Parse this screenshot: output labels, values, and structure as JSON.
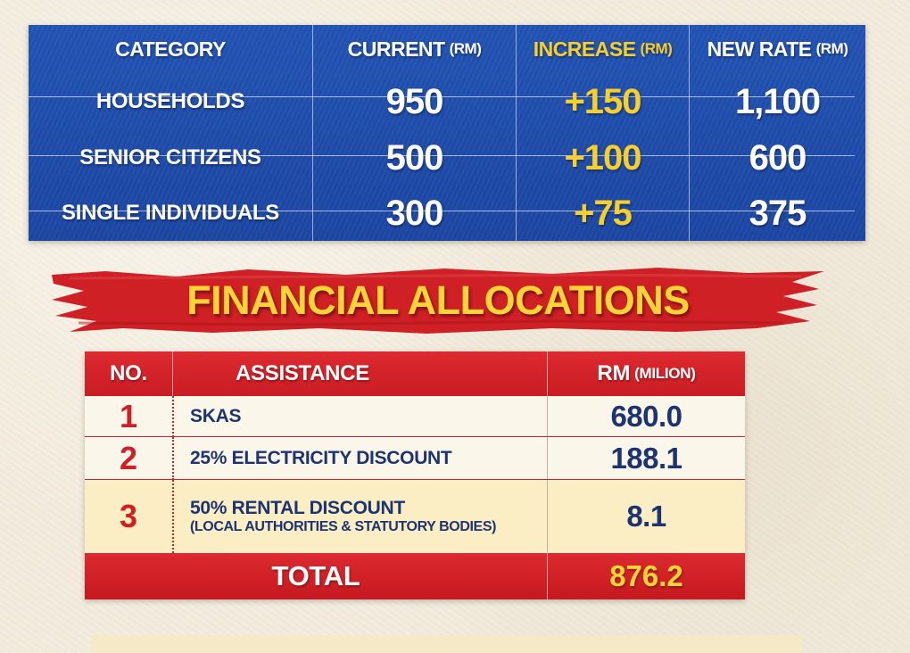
{
  "rates_table": {
    "headers": {
      "category": "CATEGORY",
      "current": "CURRENT",
      "increase": "INCREASE",
      "new_rate": "NEW RATE",
      "unit": "(RM)"
    },
    "rows": [
      {
        "category": "HOUSEHOLDS",
        "current": "950",
        "increase": "+150",
        "new_rate": "1,100"
      },
      {
        "category": "SENIOR CITIZENS",
        "current": "500",
        "increase": "+100",
        "new_rate": "600"
      },
      {
        "category": "SINGLE INDIVIDUALS",
        "current": "300",
        "increase": "+75",
        "new_rate": "375"
      }
    ]
  },
  "banner": {
    "title": "FINANCIAL ALLOCATIONS"
  },
  "allocations_table": {
    "headers": {
      "no": "NO.",
      "assistance": "ASSISTANCE",
      "rm": "RM",
      "unit": "(MILION)"
    },
    "rows": [
      {
        "no": "1",
        "assistance": "SKAS",
        "note": "",
        "amount": "680.0"
      },
      {
        "no": "2",
        "assistance": "25% ELECTRICITY DISCOUNT",
        "note": "",
        "amount": "188.1"
      },
      {
        "no": "3",
        "assistance": "50% RENTAL DISCOUNT",
        "note": "(LOCAL AUTHORITIES & STATUTORY BODIES)",
        "amount": "8.1"
      }
    ],
    "total": {
      "label": "TOTAL",
      "amount": "876.2"
    }
  },
  "colors": {
    "table_blue": "#1e4ca9",
    "accent_yellow": "#f7cf2b",
    "accent_red": "#d52229",
    "text_navy": "#1d3472",
    "background": "#f3ecde"
  }
}
